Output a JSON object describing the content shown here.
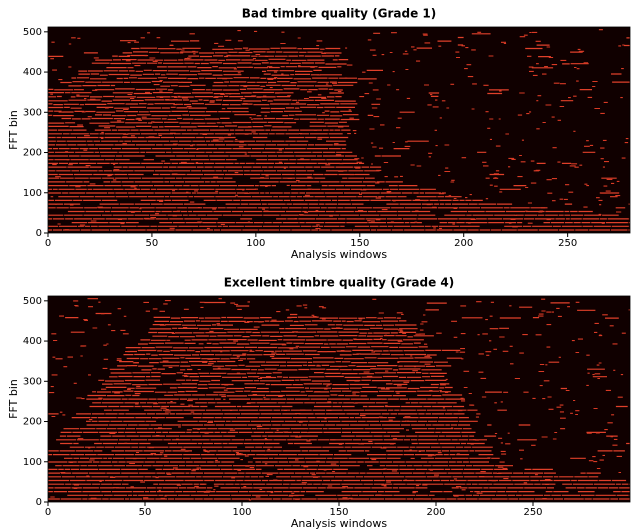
{
  "chart_data": [
    {
      "type": "heatmap",
      "title": "Bad timbre quality (Grade 1)",
      "xlabel": "Analysis windows",
      "ylabel": "FFT bin",
      "xlim": [
        0,
        280
      ],
      "ylim": [
        0,
        512
      ],
      "xticks": [
        0,
        50,
        100,
        150,
        200,
        250
      ],
      "yticks": [
        0,
        100,
        200,
        300,
        400,
        500
      ]
    },
    {
      "type": "heatmap",
      "title": "Excellent timbre quality (Grade 4)",
      "xlabel": "Analysis windows",
      "ylabel": "FFT bin",
      "xlim": [
        0,
        300
      ],
      "ylim": [
        0,
        512
      ],
      "xticks": [
        0,
        50,
        100,
        150,
        200,
        250
      ],
      "yticks": [
        0,
        100,
        200,
        300,
        400,
        500
      ]
    }
  ]
}
